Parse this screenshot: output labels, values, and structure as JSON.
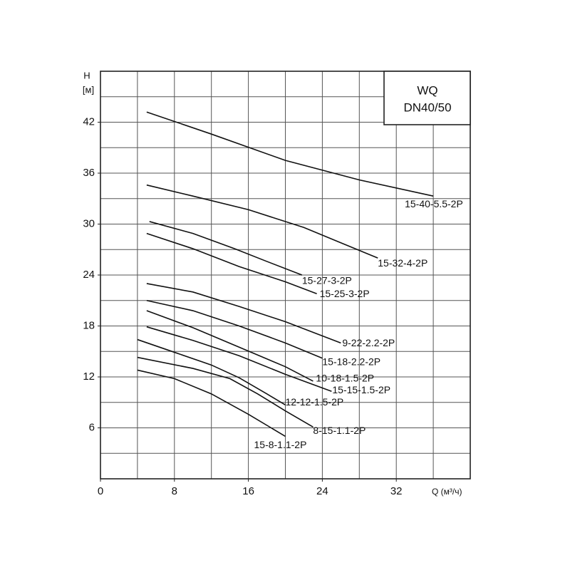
{
  "chart_data": {
    "type": "line",
    "y_label": "H",
    "y_unit": "[м]",
    "x_label": "Q (м³/ч)",
    "title": "WQ",
    "subtitle": "DN40/50",
    "xlim": [
      0,
      40
    ],
    "ylim": [
      0,
      48
    ],
    "xticks": [
      0,
      8,
      16,
      24,
      32
    ],
    "yticks": [
      6,
      12,
      18,
      24,
      30,
      36,
      42
    ],
    "x_gridlines": [
      4,
      8,
      12,
      16,
      20,
      24,
      28,
      32,
      36
    ],
    "y_gridlines": [
      3,
      6,
      9,
      12,
      15,
      18,
      21,
      24,
      27,
      30,
      33,
      36,
      39,
      42,
      45
    ],
    "grid": true,
    "series": [
      {
        "name": "15-40-5.5-2P",
        "color": "#111",
        "x": [
          5,
          12,
          20,
          28,
          36
        ],
        "values": [
          43.2,
          40.6,
          37.5,
          35.2,
          33.3
        ]
      },
      {
        "name": "15-32-4-2P",
        "color": "#111",
        "x": [
          5,
          10,
          16,
          22,
          26,
          30
        ],
        "values": [
          34.6,
          33.3,
          31.7,
          29.6,
          27.8,
          26.0
        ]
      },
      {
        "name": "15-27-3-2P",
        "color": "#111",
        "x": [
          5.3,
          10,
          14.5,
          18,
          21.8
        ],
        "values": [
          30.3,
          28.9,
          27.1,
          25.6,
          24.0
        ]
      },
      {
        "name": "15-25-3-2P",
        "color": "#111",
        "x": [
          5,
          10,
          15,
          20,
          23.4
        ],
        "values": [
          28.9,
          27.1,
          25.0,
          23.2,
          21.8
        ]
      },
      {
        "name": "9-22-2.2-2P",
        "color": "#111",
        "x": [
          5,
          10,
          15,
          20,
          26
        ],
        "values": [
          23.0,
          22.0,
          20.3,
          18.5,
          16.0
        ]
      },
      {
        "name": "15-18-2.2-2P",
        "color": "#111",
        "x": [
          5,
          10,
          15,
          20,
          24
        ],
        "values": [
          21.0,
          19.8,
          18.0,
          16.0,
          14.2
        ]
      },
      {
        "name": "10-18-1.5-2P",
        "color": "#111",
        "x": [
          5,
          10,
          15,
          20,
          23
        ],
        "values": [
          19.8,
          17.8,
          15.5,
          13.2,
          11.5
        ]
      },
      {
        "name": "15-15-1.5-2P",
        "color": "#111",
        "x": [
          5,
          10,
          15,
          20,
          25
        ],
        "values": [
          17.9,
          16.3,
          14.5,
          12.3,
          10.3
        ]
      },
      {
        "name": "12-12-1.5-2P",
        "color": "#111",
        "x": [
          4,
          8,
          12,
          15,
          18,
          20
        ],
        "values": [
          16.4,
          14.9,
          13.4,
          11.9,
          10.0,
          8.7
        ]
      },
      {
        "name": "8-15-1.1-2P",
        "color": "#111",
        "x": [
          4,
          10,
          14,
          17,
          20,
          23
        ],
        "values": [
          14.3,
          13.0,
          11.8,
          10.0,
          8.0,
          6.1
        ]
      },
      {
        "name": "15-8-1.1-2P",
        "color": "#111",
        "x": [
          4,
          8,
          12,
          16,
          20
        ],
        "values": [
          12.8,
          11.8,
          10.0,
          7.6,
          5.0
        ]
      }
    ]
  }
}
